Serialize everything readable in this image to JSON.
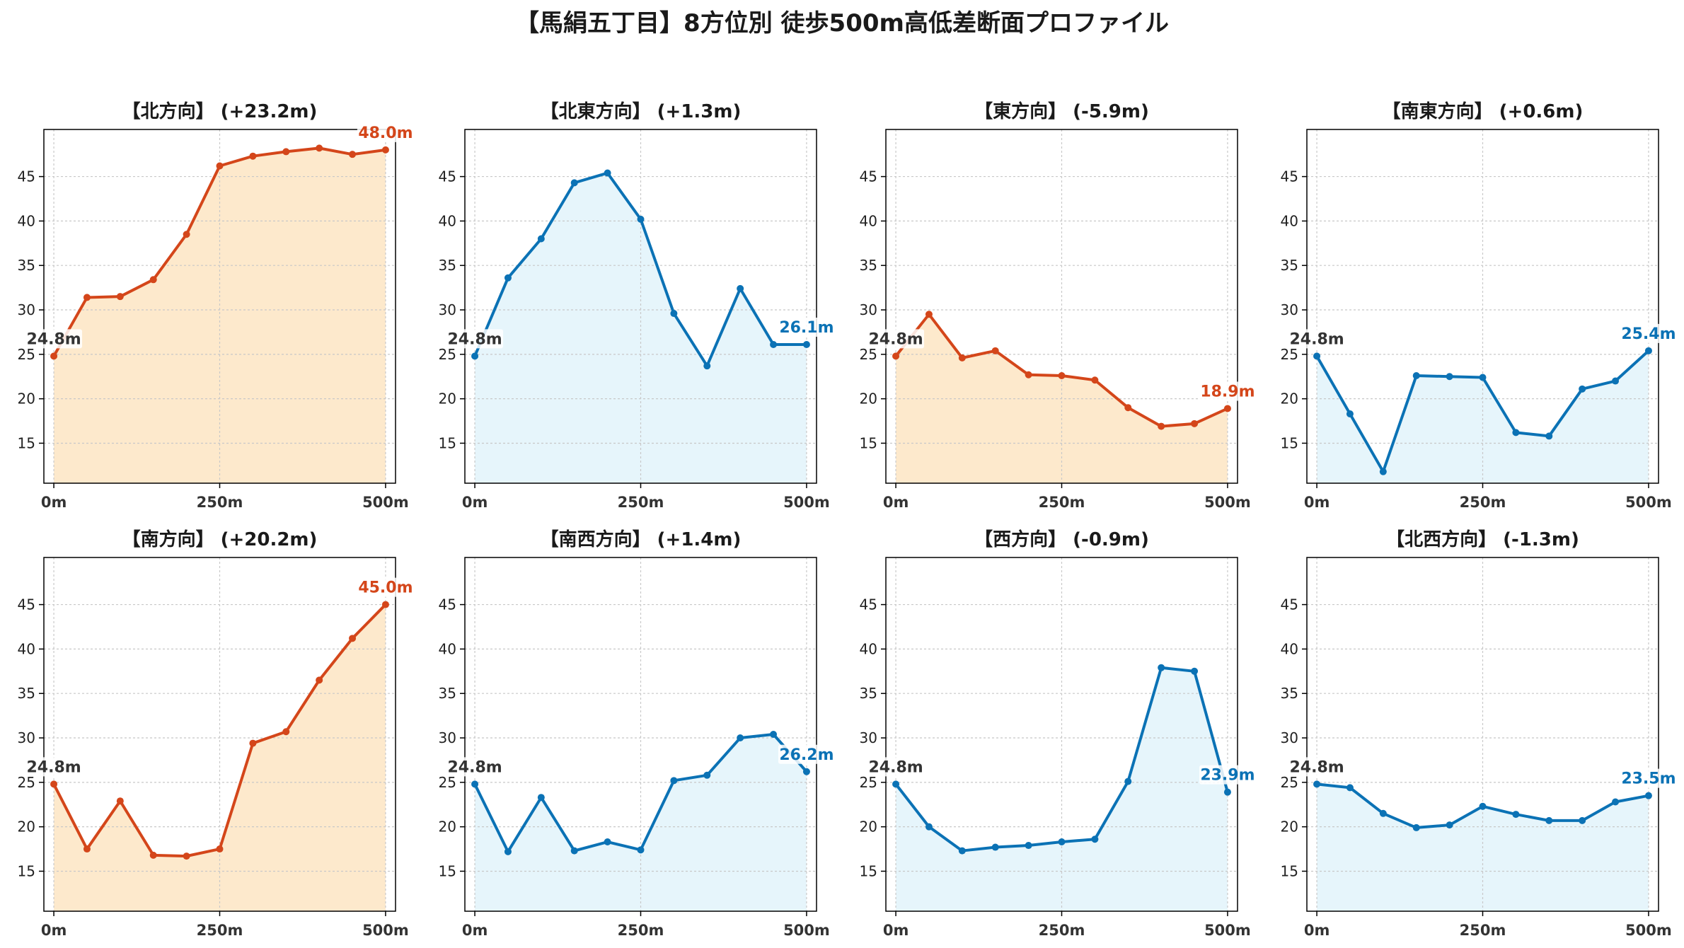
{
  "title": "【馬絹五丁目】8方位別 徒歩500m高低差断面プロファイル",
  "colors": {
    "up_line": "#d4461a",
    "up_fill": "#fde9cc",
    "down_line": "#0b72b5",
    "down_fill": "#e6f5fb",
    "start_label": "#333333",
    "grid": "#c8c8c8",
    "axis": "#000000"
  },
  "chart_data": [
    {
      "type": "area",
      "title": "【北方向】 (+23.2m)",
      "trend": "up",
      "x": [
        0,
        50,
        100,
        150,
        200,
        250,
        300,
        350,
        400,
        450,
        500
      ],
      "y": [
        24.8,
        31.4,
        31.5,
        33.4,
        38.5,
        46.2,
        47.3,
        47.8,
        48.2,
        47.5,
        48.0
      ],
      "start_label": "24.8m",
      "end_label": "48.0m",
      "xticks": [
        "0m",
        "250m",
        "500m"
      ],
      "yticks": [
        15,
        20,
        25,
        30,
        35,
        40,
        45
      ],
      "xlim": [
        -15,
        515
      ],
      "ylim": [
        10.5,
        50.3
      ],
      "grid": true
    },
    {
      "type": "area",
      "title": "【北東方向】 (+1.3m)",
      "trend": "down",
      "x": [
        0,
        50,
        100,
        150,
        200,
        250,
        300,
        350,
        400,
        450,
        500
      ],
      "y": [
        24.8,
        33.6,
        38.0,
        44.3,
        45.4,
        40.2,
        29.6,
        23.7,
        32.4,
        26.1,
        26.1
      ],
      "start_label": "24.8m",
      "end_label": "26.1m",
      "xticks": [
        "0m",
        "250m",
        "500m"
      ],
      "yticks": [
        15,
        20,
        25,
        30,
        35,
        40,
        45
      ],
      "xlim": [
        -15,
        515
      ],
      "ylim": [
        10.5,
        50.3
      ],
      "grid": true
    },
    {
      "type": "area",
      "title": "【東方向】 (-5.9m)",
      "trend": "up",
      "x": [
        0,
        50,
        100,
        150,
        200,
        250,
        300,
        350,
        400,
        450,
        500
      ],
      "y": [
        24.8,
        29.5,
        24.6,
        25.4,
        22.7,
        22.6,
        22.1,
        19.0,
        16.9,
        17.2,
        18.9
      ],
      "start_label": "24.8m",
      "end_label": "18.9m",
      "xticks": [
        "0m",
        "250m",
        "500m"
      ],
      "yticks": [
        15,
        20,
        25,
        30,
        35,
        40,
        45
      ],
      "xlim": [
        -15,
        515
      ],
      "ylim": [
        10.5,
        50.3
      ],
      "grid": true
    },
    {
      "type": "area",
      "title": "【南東方向】 (+0.6m)",
      "trend": "down",
      "x": [
        0,
        50,
        100,
        150,
        200,
        250,
        300,
        350,
        400,
        450,
        500
      ],
      "y": [
        24.8,
        18.3,
        11.8,
        22.6,
        22.5,
        22.4,
        16.2,
        15.8,
        21.1,
        22.0,
        25.4
      ],
      "start_label": "24.8m",
      "end_label": "25.4m",
      "xticks": [
        "0m",
        "250m",
        "500m"
      ],
      "yticks": [
        15,
        20,
        25,
        30,
        35,
        40,
        45
      ],
      "xlim": [
        -15,
        515
      ],
      "ylim": [
        10.5,
        50.3
      ],
      "grid": true
    },
    {
      "type": "area",
      "title": "【南方向】 (+20.2m)",
      "trend": "up",
      "x": [
        0,
        50,
        100,
        150,
        200,
        250,
        300,
        350,
        400,
        450,
        500
      ],
      "y": [
        24.8,
        17.5,
        22.9,
        16.8,
        16.7,
        17.5,
        29.4,
        30.7,
        36.5,
        41.2,
        45.0
      ],
      "start_label": "24.8m",
      "end_label": "45.0m",
      "xticks": [
        "0m",
        "250m",
        "500m"
      ],
      "yticks": [
        15,
        20,
        25,
        30,
        35,
        40,
        45
      ],
      "xlim": [
        -15,
        515
      ],
      "ylim": [
        10.5,
        50.3
      ],
      "grid": true
    },
    {
      "type": "area",
      "title": "【南西方向】 (+1.4m)",
      "trend": "down",
      "x": [
        0,
        50,
        100,
        150,
        200,
        250,
        300,
        350,
        400,
        450,
        500
      ],
      "y": [
        24.8,
        17.2,
        23.3,
        17.3,
        18.3,
        17.4,
        25.2,
        25.8,
        30.0,
        30.4,
        26.2
      ],
      "start_label": "24.8m",
      "end_label": "26.2m",
      "xticks": [
        "0m",
        "250m",
        "500m"
      ],
      "yticks": [
        15,
        20,
        25,
        30,
        35,
        40,
        45
      ],
      "xlim": [
        -15,
        515
      ],
      "ylim": [
        10.5,
        50.3
      ],
      "grid": true
    },
    {
      "type": "area",
      "title": "【西方向】 (-0.9m)",
      "trend": "down",
      "x": [
        0,
        50,
        100,
        150,
        200,
        250,
        300,
        350,
        400,
        450,
        500
      ],
      "y": [
        24.8,
        20.0,
        17.3,
        17.7,
        17.9,
        18.3,
        18.6,
        25.1,
        37.9,
        37.5,
        23.9
      ],
      "start_label": "24.8m",
      "end_label": "23.9m",
      "xticks": [
        "0m",
        "250m",
        "500m"
      ],
      "yticks": [
        15,
        20,
        25,
        30,
        35,
        40,
        45
      ],
      "xlim": [
        -15,
        515
      ],
      "ylim": [
        10.5,
        50.3
      ],
      "grid": true
    },
    {
      "type": "area",
      "title": "【北西方向】 (-1.3m)",
      "trend": "down",
      "x": [
        0,
        50,
        100,
        150,
        200,
        250,
        300,
        350,
        400,
        450,
        500
      ],
      "y": [
        24.8,
        24.4,
        21.5,
        19.9,
        20.2,
        22.3,
        21.4,
        20.7,
        20.7,
        22.8,
        23.5
      ],
      "start_label": "24.8m",
      "end_label": "23.5m",
      "xticks": [
        "0m",
        "250m",
        "500m"
      ],
      "yticks": [
        15,
        20,
        25,
        30,
        35,
        40,
        45
      ],
      "xlim": [
        -15,
        515
      ],
      "ylim": [
        10.5,
        50.3
      ],
      "grid": true
    }
  ]
}
